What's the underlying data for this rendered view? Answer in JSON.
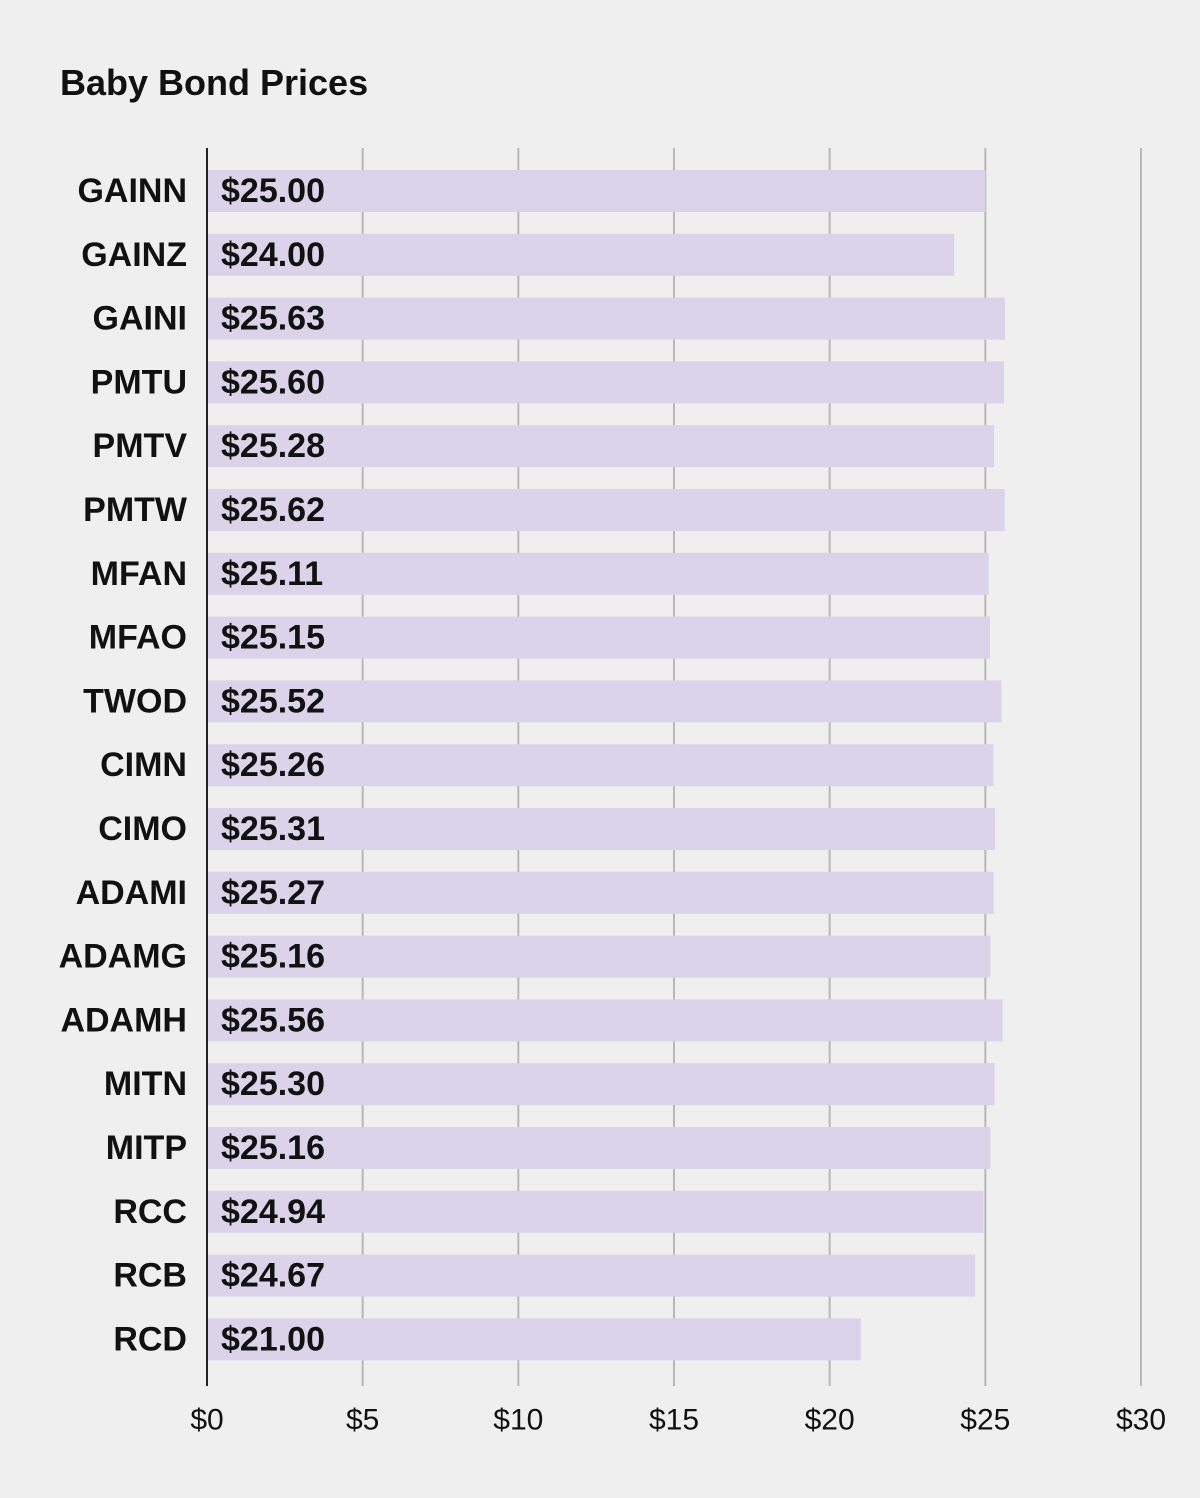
{
  "chart_data": {
    "type": "bar",
    "orientation": "horizontal",
    "title": "Baby Bond Prices",
    "xlabel": "",
    "ylabel": "",
    "categories": [
      "GAINN",
      "GAINZ",
      "GAINI",
      "PMTU",
      "PMTV",
      "PMTW",
      "MFAN",
      "MFAO",
      "TWOD",
      "CIMN",
      "CIMO",
      "ADAMI",
      "ADAMG",
      "ADAMH",
      "MITN",
      "MITP",
      "RCC",
      "RCB",
      "RCD"
    ],
    "values": [
      25.0,
      24.0,
      25.63,
      25.6,
      25.28,
      25.62,
      25.11,
      25.15,
      25.52,
      25.26,
      25.31,
      25.27,
      25.16,
      25.56,
      25.3,
      25.16,
      24.94,
      24.67,
      21.0
    ],
    "value_labels": [
      "$25.00",
      "$24.00",
      "$25.63",
      "$25.60",
      "$25.28",
      "$25.62",
      "$25.11",
      "$25.15",
      "$25.52",
      "$25.26",
      "$25.31",
      "$25.27",
      "$25.16",
      "$25.56",
      "$25.30",
      "$25.16",
      "$24.94",
      "$24.67",
      "$21.00"
    ],
    "xlim": [
      0,
      30
    ],
    "ticks": [
      0,
      5,
      10,
      15,
      20,
      25,
      30
    ],
    "tick_labels": [
      "$0",
      "$5",
      "$10",
      "$15",
      "$20",
      "$25",
      "$30"
    ],
    "grid": true,
    "legend": "none",
    "colors": {
      "bar": "#dad3e9",
      "grid": "#b8b8b8",
      "axis": "#222222",
      "background": "#efefef",
      "text": "#111111"
    }
  }
}
